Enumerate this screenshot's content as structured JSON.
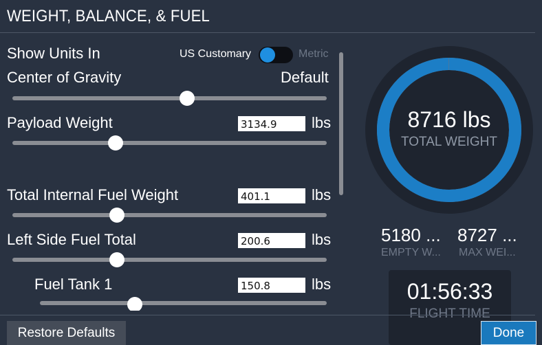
{
  "header": {
    "title": "WEIGHT, BALANCE, & FUEL"
  },
  "units": {
    "label": "Show Units In",
    "left_option": "US Customary",
    "right_option": "Metric",
    "selected": "US Customary"
  },
  "cog": {
    "label": "Center of Gravity",
    "value": "Default",
    "slider_level": 0.5
  },
  "payload": {
    "label": "Payload Weight",
    "value": "3134.9",
    "unit": "lbs",
    "slider_level": 0.33
  },
  "internal_fuel": {
    "label": "Total Internal Fuel Weight",
    "value": "401.1",
    "unit": "lbs",
    "slider_level": 0.33
  },
  "left_fuel": {
    "label": "Left Side Fuel Total",
    "value": "200.6",
    "unit": "lbs",
    "slider_level": 0.33
  },
  "fuel_tank1": {
    "label": "Fuel Tank 1",
    "value": "150.8",
    "unit": "lbs",
    "slider_level": 0.33
  },
  "summary": {
    "total_weight": "8716 lbs",
    "total_weight_label": "TOTAL WEIGHT",
    "total_fraction": 0.9987,
    "empty_weight": "5180 ...",
    "empty_label": "EMPTY W...",
    "max_weight": "8727 ...",
    "max_label": "MAX WEI..."
  },
  "flight": {
    "time": "01:56:33",
    "label": "FLIGHT TIME"
  },
  "buttons": {
    "restore": "Restore Defaults",
    "done": "Done"
  },
  "colors": {
    "accent": "#1a79bd",
    "ring_blue": "#1c7ec6",
    "background": "#293241"
  }
}
